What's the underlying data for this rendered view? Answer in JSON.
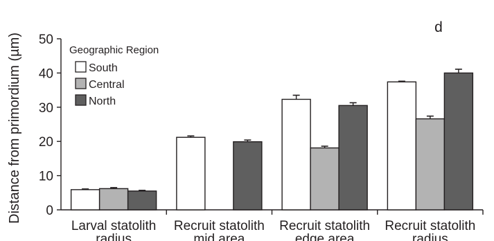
{
  "chart_data": {
    "type": "bar",
    "panel_label": "d",
    "ylabel": "Distance from primordium (µm)",
    "xlabel": "",
    "ylim": [
      0,
      50
    ],
    "yticks": [
      "0",
      "10",
      "20",
      "30",
      "40",
      "50"
    ],
    "grid": false,
    "legend": {
      "title": "Geographic Region",
      "placement": "top-left"
    },
    "categories": [
      [
        "Larval statolith",
        "radius"
      ],
      [
        "Recruit statolith",
        "mid area"
      ],
      [
        "Recruit statolith",
        "edge area"
      ],
      [
        "Recruit statolith",
        "radius"
      ]
    ],
    "series": [
      {
        "name": "South",
        "color": "#ffffff",
        "values": [
          5.9,
          21.2,
          32.3,
          37.4
        ],
        "errors": [
          0.2,
          0.4,
          1.2,
          0.2
        ]
      },
      {
        "name": "Central",
        "color": "#b3b3b3",
        "values": [
          6.2,
          null,
          18.1,
          26.6
        ],
        "errors": [
          0.3,
          null,
          0.5,
          0.8
        ]
      },
      {
        "name": "North",
        "color": "#5f5f5f",
        "values": [
          5.5,
          19.9,
          30.5,
          40.0
        ],
        "errors": [
          0.2,
          0.5,
          0.8,
          1.1
        ]
      }
    ]
  }
}
